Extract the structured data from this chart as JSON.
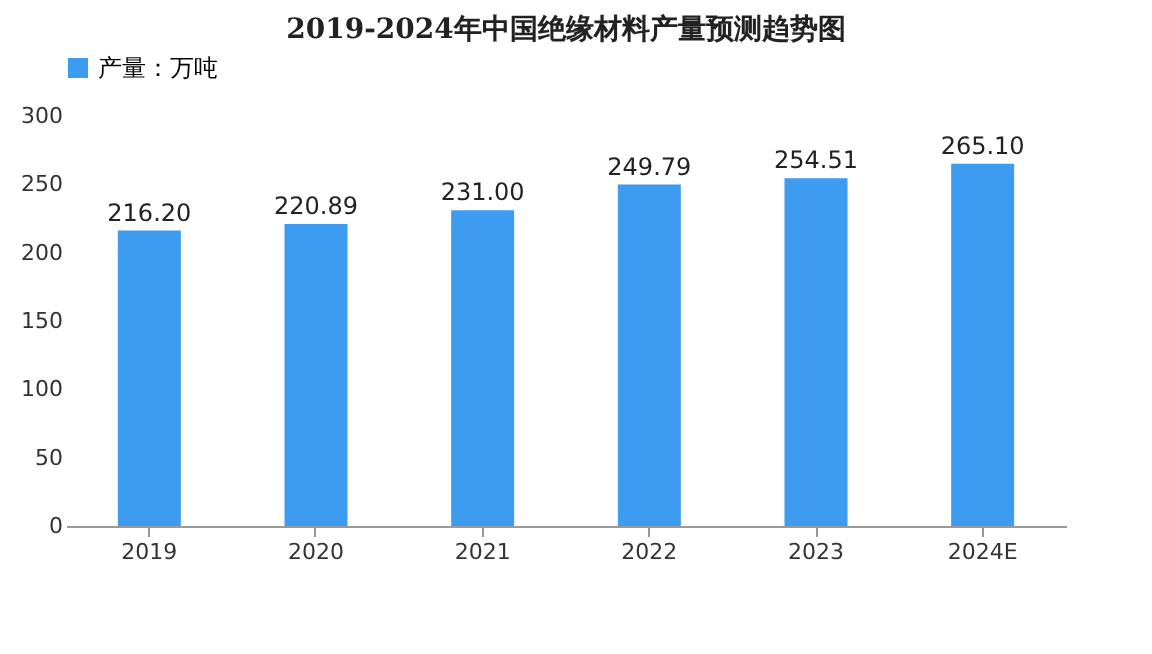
{
  "chart_data": {
    "type": "bar",
    "title": "2019-2024年中国绝缘材料产量预测趋势图",
    "categories": [
      "2019",
      "2020",
      "2021",
      "2022",
      "2023",
      "2024E"
    ],
    "series": [
      {
        "name": "产量：万吨",
        "color": "#3d9cf0",
        "values": [
          216.2,
          220.89,
          231.0,
          249.79,
          254.51,
          265.1
        ],
        "value_labels": [
          "216.20",
          "220.89",
          "231.00",
          "249.79",
          "254.51",
          "265.10"
        ]
      }
    ],
    "ylim": [
      0,
      300
    ],
    "yticks": [
      0,
      50,
      100,
      150,
      200,
      250,
      300
    ],
    "grid": false,
    "legend": "top"
  }
}
